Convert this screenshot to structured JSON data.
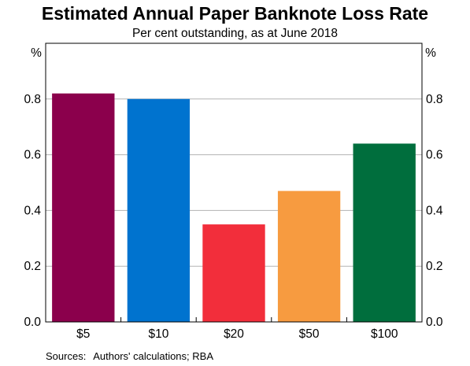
{
  "chart_data": {
    "type": "bar",
    "title": "Estimated Annual Paper Banknote Loss Rate",
    "subtitle": "Per cent outstanding, as at June 2018",
    "ylabel_left": "%",
    "ylabel_right": "%",
    "ylim": [
      0,
      1.0
    ],
    "yticks": [
      "0.0",
      "0.2",
      "0.4",
      "0.6",
      "0.8"
    ],
    "grid": true,
    "categories": [
      "$5",
      "$10",
      "$20",
      "$50",
      "$100"
    ],
    "values": [
      0.82,
      0.8,
      0.35,
      0.47,
      0.64
    ],
    "colors": [
      "#8b004c",
      "#0073cf",
      "#f22e3b",
      "#f79b40",
      "#006e3d"
    ]
  },
  "source": {
    "label": "Sources:",
    "text": "Authors' calculations; RBA"
  }
}
